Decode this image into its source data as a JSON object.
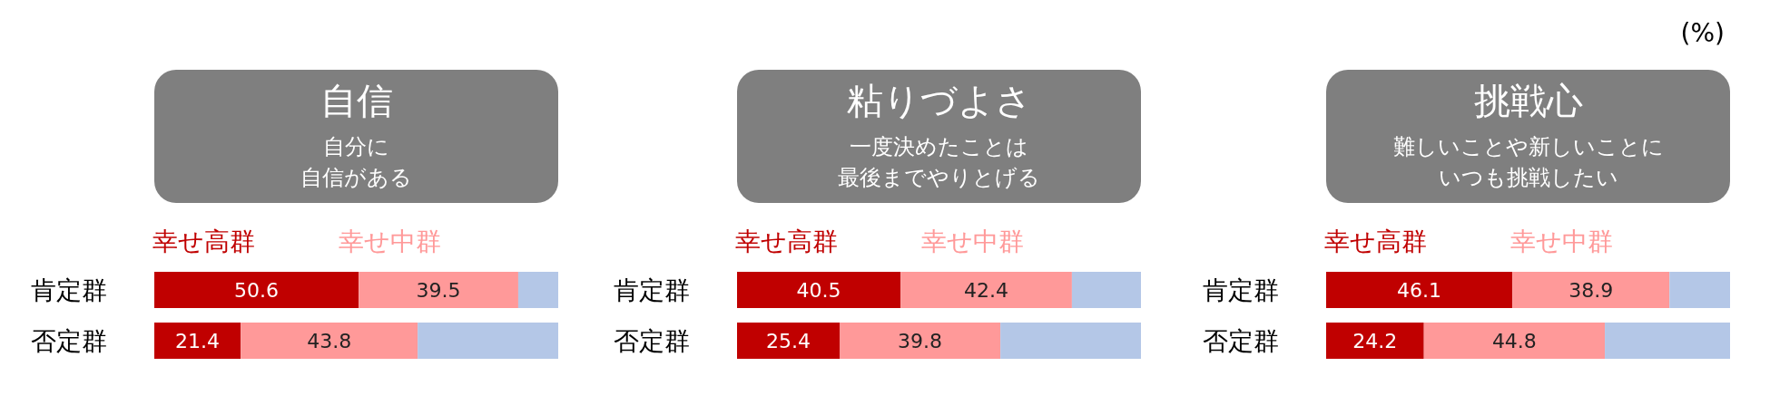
{
  "chart_data": [
    {
      "type": "bar",
      "orientation": "horizontal",
      "stacked": true,
      "title": "自信",
      "subtitle": "自分に自信がある",
      "categories": [
        "肯定群",
        "否定群"
      ],
      "xlim": [
        0,
        100
      ],
      "legend": "top left",
      "series": [
        {
          "name": "幸せ高群",
          "color": "#c00000",
          "values": [
            50.6,
            21.4
          ],
          "value_labels": [
            "50.6",
            "21.4"
          ]
        },
        {
          "name": "幸せ中群",
          "color": "#ff9999",
          "values": [
            39.5,
            43.8
          ],
          "value_labels": [
            "39.5",
            "43.8"
          ]
        },
        {
          "color": "#b4c7e7",
          "values": [
            9.9,
            34.8
          ]
        }
      ]
    },
    {
      "type": "bar",
      "orientation": "horizontal",
      "stacked": true,
      "title": "粘りづよさ",
      "subtitle": "一度決めたことは最後までやりとげる",
      "categories": [
        "肯定群",
        "否定群"
      ],
      "xlim": [
        0,
        100
      ],
      "legend": "top left",
      "series": [
        {
          "name": "幸せ高群",
          "color": "#c00000",
          "values": [
            40.5,
            25.4
          ],
          "value_labels": [
            "40.5",
            "25.4"
          ]
        },
        {
          "name": "幸せ中群",
          "color": "#ff9999",
          "values": [
            42.4,
            39.8
          ],
          "value_labels": [
            "42.4",
            "39.8"
          ]
        },
        {
          "color": "#b4c7e7",
          "values": [
            17.1,
            34.8
          ]
        }
      ]
    },
    {
      "type": "bar",
      "orientation": "horizontal",
      "stacked": true,
      "title": "挑戦心",
      "subtitle": "難しいことや新しいことにいつも挑戦したい",
      "categories": [
        "肯定群",
        "否定群"
      ],
      "xlim": [
        0,
        100
      ],
      "legend": "top left",
      "annotations": [
        "(%)"
      ],
      "series": [
        {
          "name": "幸せ高群",
          "color": "#c00000",
          "values": [
            46.1,
            24.2
          ],
          "value_labels": [
            "46.1",
            "24.2"
          ]
        },
        {
          "name": "幸せ中群",
          "color": "#ff9999",
          "values": [
            38.9,
            44.8
          ],
          "value_labels": [
            "38.9",
            "44.8"
          ]
        },
        {
          "color": "#b4c7e7",
          "values": [
            15.0,
            31.0
          ]
        }
      ]
    }
  ]
}
